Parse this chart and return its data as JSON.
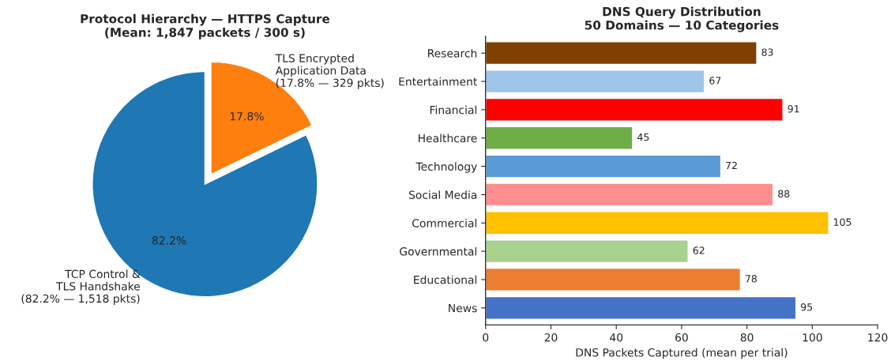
{
  "chart_data": [
    {
      "type": "pie",
      "title": "Protocol Hierarchy — HTTPS Capture\n(Mean: 1,847 packets / 300 s)",
      "categories": [
        "TCP Control &\nTLS Handshake\n(82.2% — 1,518 pkts)",
        "TLS Encrypted\nApplication Data\n(17.8% — 329 pkts)"
      ],
      "values": [
        82.2,
        17.8
      ],
      "colors": [
        "#1f77b4",
        "#ff7f0e"
      ],
      "value_labels": [
        "82.2%",
        "17.8%"
      ]
    },
    {
      "type": "bar",
      "orientation": "horizontal",
      "title": "DNS Query Distribution\n50 Domains — 10 Categories",
      "xlabel": "DNS Packets Captured (mean per trial)",
      "categories": [
        "Research",
        "Entertainment",
        "Financial",
        "Healthcare",
        "Technology",
        "Social Media",
        "Commercial",
        "Governmental",
        "Educational",
        "News"
      ],
      "values": [
        83,
        67,
        91,
        45,
        72,
        88,
        105,
        62,
        78,
        95
      ],
      "colors": [
        "#7f3f00",
        "#9fc5e8",
        "#ff0000",
        "#70ad47",
        "#5b9bd5",
        "#ff8f8f",
        "#ffc000",
        "#a9d18e",
        "#ed7d31",
        "#4472c4"
      ],
      "xlim": [
        0,
        120
      ],
      "xticks": [
        0,
        20,
        40,
        60,
        80,
        100,
        120
      ],
      "data_labels": true,
      "grid": false,
      "legend": false
    }
  ]
}
